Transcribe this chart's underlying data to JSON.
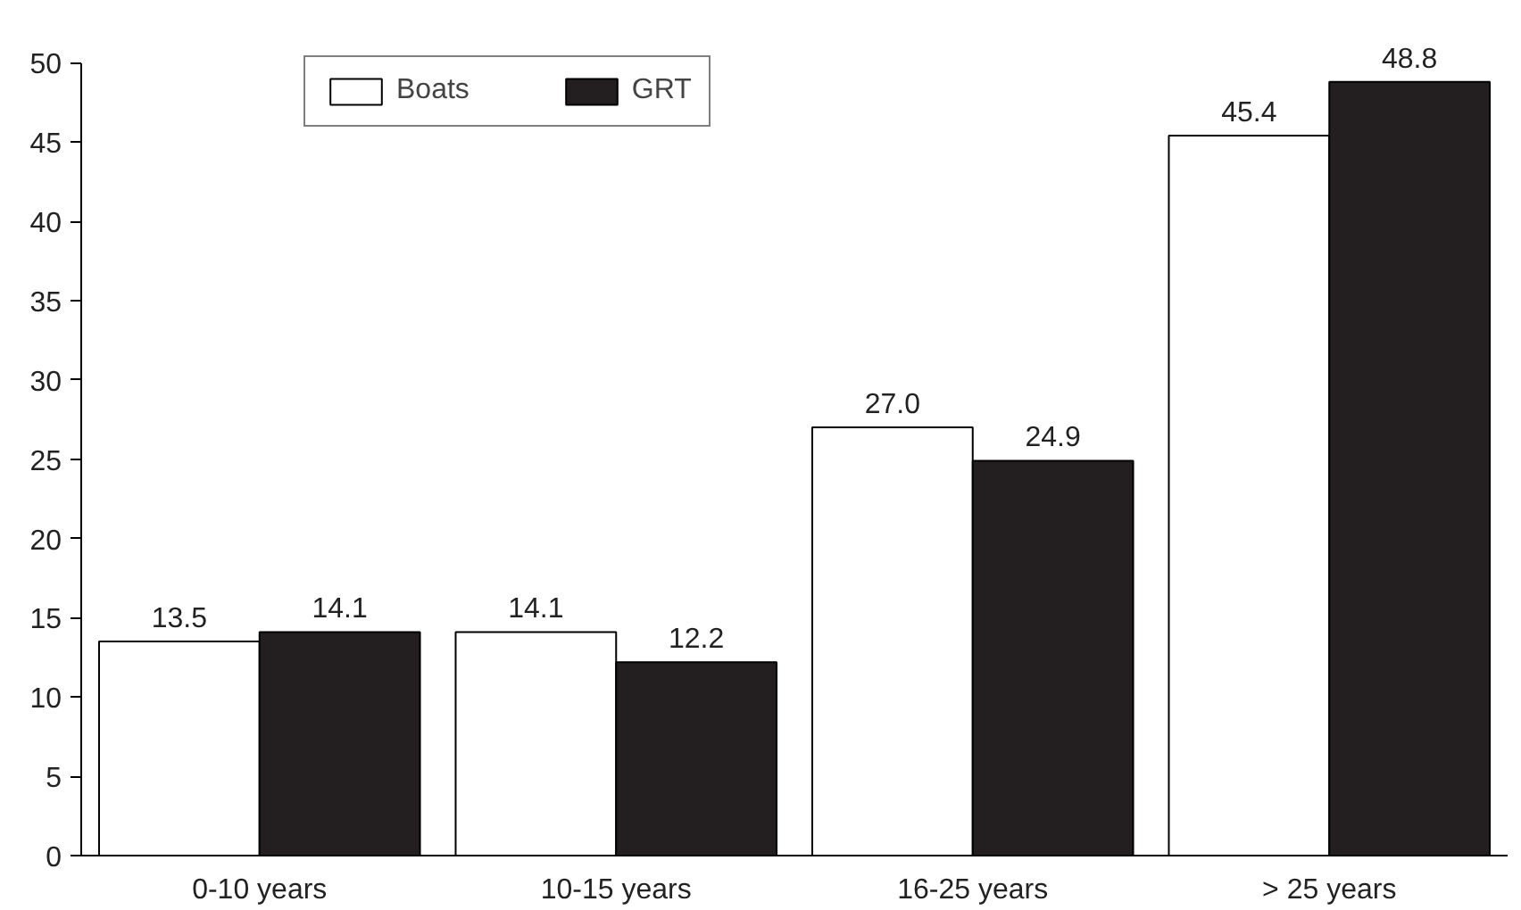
{
  "chart_data": {
    "type": "bar",
    "categories": [
      "0-10 years",
      "10-15 years",
      "16-25 years",
      "> 25 years"
    ],
    "series": [
      {
        "name": "Boats",
        "color": "#ffffff",
        "values": [
          13.5,
          14.1,
          27.0,
          45.4
        ],
        "value_labels": [
          "13.5",
          "14.1",
          "27.0",
          "45.4"
        ]
      },
      {
        "name": "GRT",
        "color": "#231f20",
        "values": [
          14.1,
          12.2,
          24.9,
          48.8
        ],
        "value_labels": [
          "14.1",
          "12.2",
          "24.9",
          "48.8"
        ]
      }
    ],
    "ylim": [
      0,
      50
    ],
    "yticks": [
      0,
      5,
      10,
      15,
      20,
      25,
      30,
      35,
      40,
      45,
      50
    ],
    "grid": false,
    "legend": "top"
  }
}
